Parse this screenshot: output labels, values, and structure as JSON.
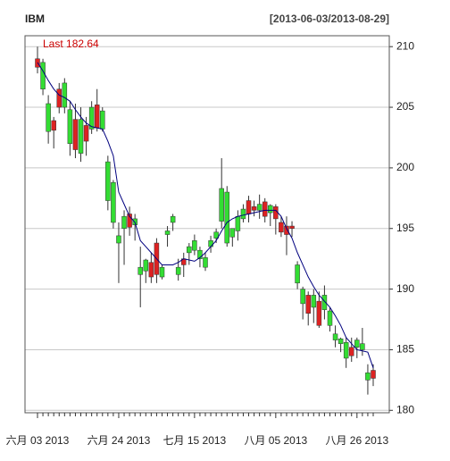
{
  "chart_data": {
    "type": "candlestick",
    "title": "IBM",
    "subtitle": "[2013-06-03/2013-08-29]",
    "last_label": "Last",
    "last": 182.64,
    "categories": [
      "六月 03 2013",
      null,
      null,
      null,
      null,
      null,
      null,
      null,
      null,
      null,
      null,
      null,
      null,
      null,
      null,
      "六月 24 2013",
      null,
      null,
      null,
      null,
      null,
      null,
      null,
      null,
      null,
      null,
      null,
      null,
      null,
      "七月 15 2013",
      null,
      null,
      null,
      null,
      null,
      null,
      null,
      null,
      null,
      null,
      null,
      null,
      null,
      null,
      "八月 05 2013",
      null,
      null,
      null,
      null,
      null,
      null,
      null,
      null,
      null,
      null,
      null,
      null,
      null,
      null,
      "八月 26 2013",
      null,
      null,
      null
    ],
    "open": [
      209.0,
      206.5,
      203.0,
      203.9,
      206.5,
      205.0,
      202.0,
      204.0,
      201.2,
      203.5,
      203.2,
      205.2,
      203.2,
      197.3,
      195.5,
      193.8,
      195.0,
      196.2,
      195.3,
      191.2,
      191.5,
      192.2,
      193.8,
      191.0,
      194.5,
      195.5,
      191.2,
      192.5,
      193.0,
      193.2,
      192.5,
      191.8,
      193.5,
      194.2,
      195.6,
      193.8,
      194.3,
      194.8,
      195.8,
      197.3,
      196.8,
      196.5,
      197.2,
      196.3,
      196.8,
      195.5,
      195.2,
      195.2,
      190.5,
      188.8,
      189.5,
      188.5,
      189.0,
      188.3,
      187.0,
      185.8,
      185.5,
      184.3,
      185.2,
      185.2,
      185.0,
      182.5,
      183.3
    ],
    "high": [
      210.0,
      209.0,
      206.0,
      204.2,
      207.0,
      207.4,
      205.5,
      205.3,
      205.0,
      204.2,
      205.5,
      206.5,
      205.0,
      201.0,
      199.0,
      195.5,
      196.5,
      196.8,
      196.2,
      193.5,
      192.5,
      193.0,
      194.2,
      192.0,
      195.2,
      196.2,
      192.5,
      193.0,
      193.8,
      194.5,
      193.5,
      193.0,
      194.4,
      195.0,
      200.8,
      198.5,
      195.0,
      196.5,
      197.0,
      197.7,
      197.3,
      197.8,
      197.5,
      197.0,
      197.0,
      196.0,
      196.0,
      195.6,
      192.3,
      190.2,
      189.8,
      190.0,
      189.8,
      190.3,
      188.5,
      187.0,
      186.0,
      186.0,
      186.0,
      186.0,
      186.8,
      183.8,
      183.8
    ],
    "low": [
      207.8,
      206.0,
      202.0,
      201.6,
      204.5,
      204.5,
      201.0,
      200.8,
      200.5,
      201.0,
      202.8,
      203.0,
      203.0,
      196.5,
      195.0,
      190.5,
      192.0,
      194.4,
      194.0,
      188.5,
      190.5,
      190.5,
      190.5,
      190.8,
      193.5,
      194.8,
      190.7,
      191.0,
      192.0,
      192.8,
      191.8,
      191.5,
      193.0,
      193.8,
      195.0,
      193.5,
      193.5,
      194.0,
      195.5,
      195.5,
      196.0,
      195.8,
      195.5,
      195.2,
      194.5,
      194.3,
      192.8,
      194.3,
      190.0,
      187.5,
      187.0,
      187.2,
      186.8,
      187.5,
      186.5,
      185.2,
      184.8,
      183.5,
      184.0,
      184.3,
      184.5,
      181.3,
      182.0
    ],
    "close": [
      208.3,
      208.7,
      205.3,
      203.1,
      205.0,
      207.0,
      204.8,
      201.5,
      204.0,
      202.2,
      205.0,
      203.3,
      204.7,
      200.5,
      198.8,
      194.4,
      196.0,
      195.1,
      195.8,
      191.8,
      192.4,
      191.0,
      191.2,
      191.8,
      194.8,
      196.0,
      191.8,
      192.0,
      193.5,
      194.0,
      193.2,
      192.6,
      194.0,
      194.7,
      198.3,
      198.0,
      195.0,
      196.0,
      196.6,
      196.2,
      196.5,
      197.0,
      196.0,
      196.9,
      195.8,
      194.7,
      194.5,
      195.0,
      192.0,
      190.0,
      188.0,
      189.5,
      187.0,
      189.5,
      188.2,
      186.3,
      185.9,
      185.6,
      184.5,
      185.8,
      185.5,
      183.1,
      182.64
    ],
    "ma": [
      208.7,
      208.0,
      207.2,
      206.5,
      206.0,
      205.8,
      205.5,
      204.8,
      204.2,
      203.7,
      203.4,
      203.3,
      203.2,
      202.2,
      201.0,
      198.0,
      197.0,
      196.0,
      195.5,
      194.0,
      193.5,
      193.0,
      192.5,
      192.0,
      192.0,
      192.0,
      192.2,
      192.5,
      192.4,
      192.3,
      192.6,
      193.0,
      193.5,
      194.0,
      194.8,
      195.5,
      195.8,
      196.0,
      196.1,
      196.2,
      196.3,
      196.4,
      196.5,
      196.5,
      196.5,
      196.0,
      195.0,
      194.2,
      193.0,
      192.0,
      191.0,
      190.2,
      189.5,
      189.0,
      188.5,
      187.8,
      187.0,
      186.0,
      185.5,
      185.0,
      184.9,
      184.8,
      183.5
    ],
    "up_color": "#33dd33",
    "down_color": "#dd2222",
    "ma_color": "#00007f",
    "last_color": "#cc0000",
    "ylim": [
      179.8,
      210.9
    ],
    "yticks": [
      180,
      185,
      190,
      195,
      200,
      205,
      210
    ],
    "grid": true
  }
}
